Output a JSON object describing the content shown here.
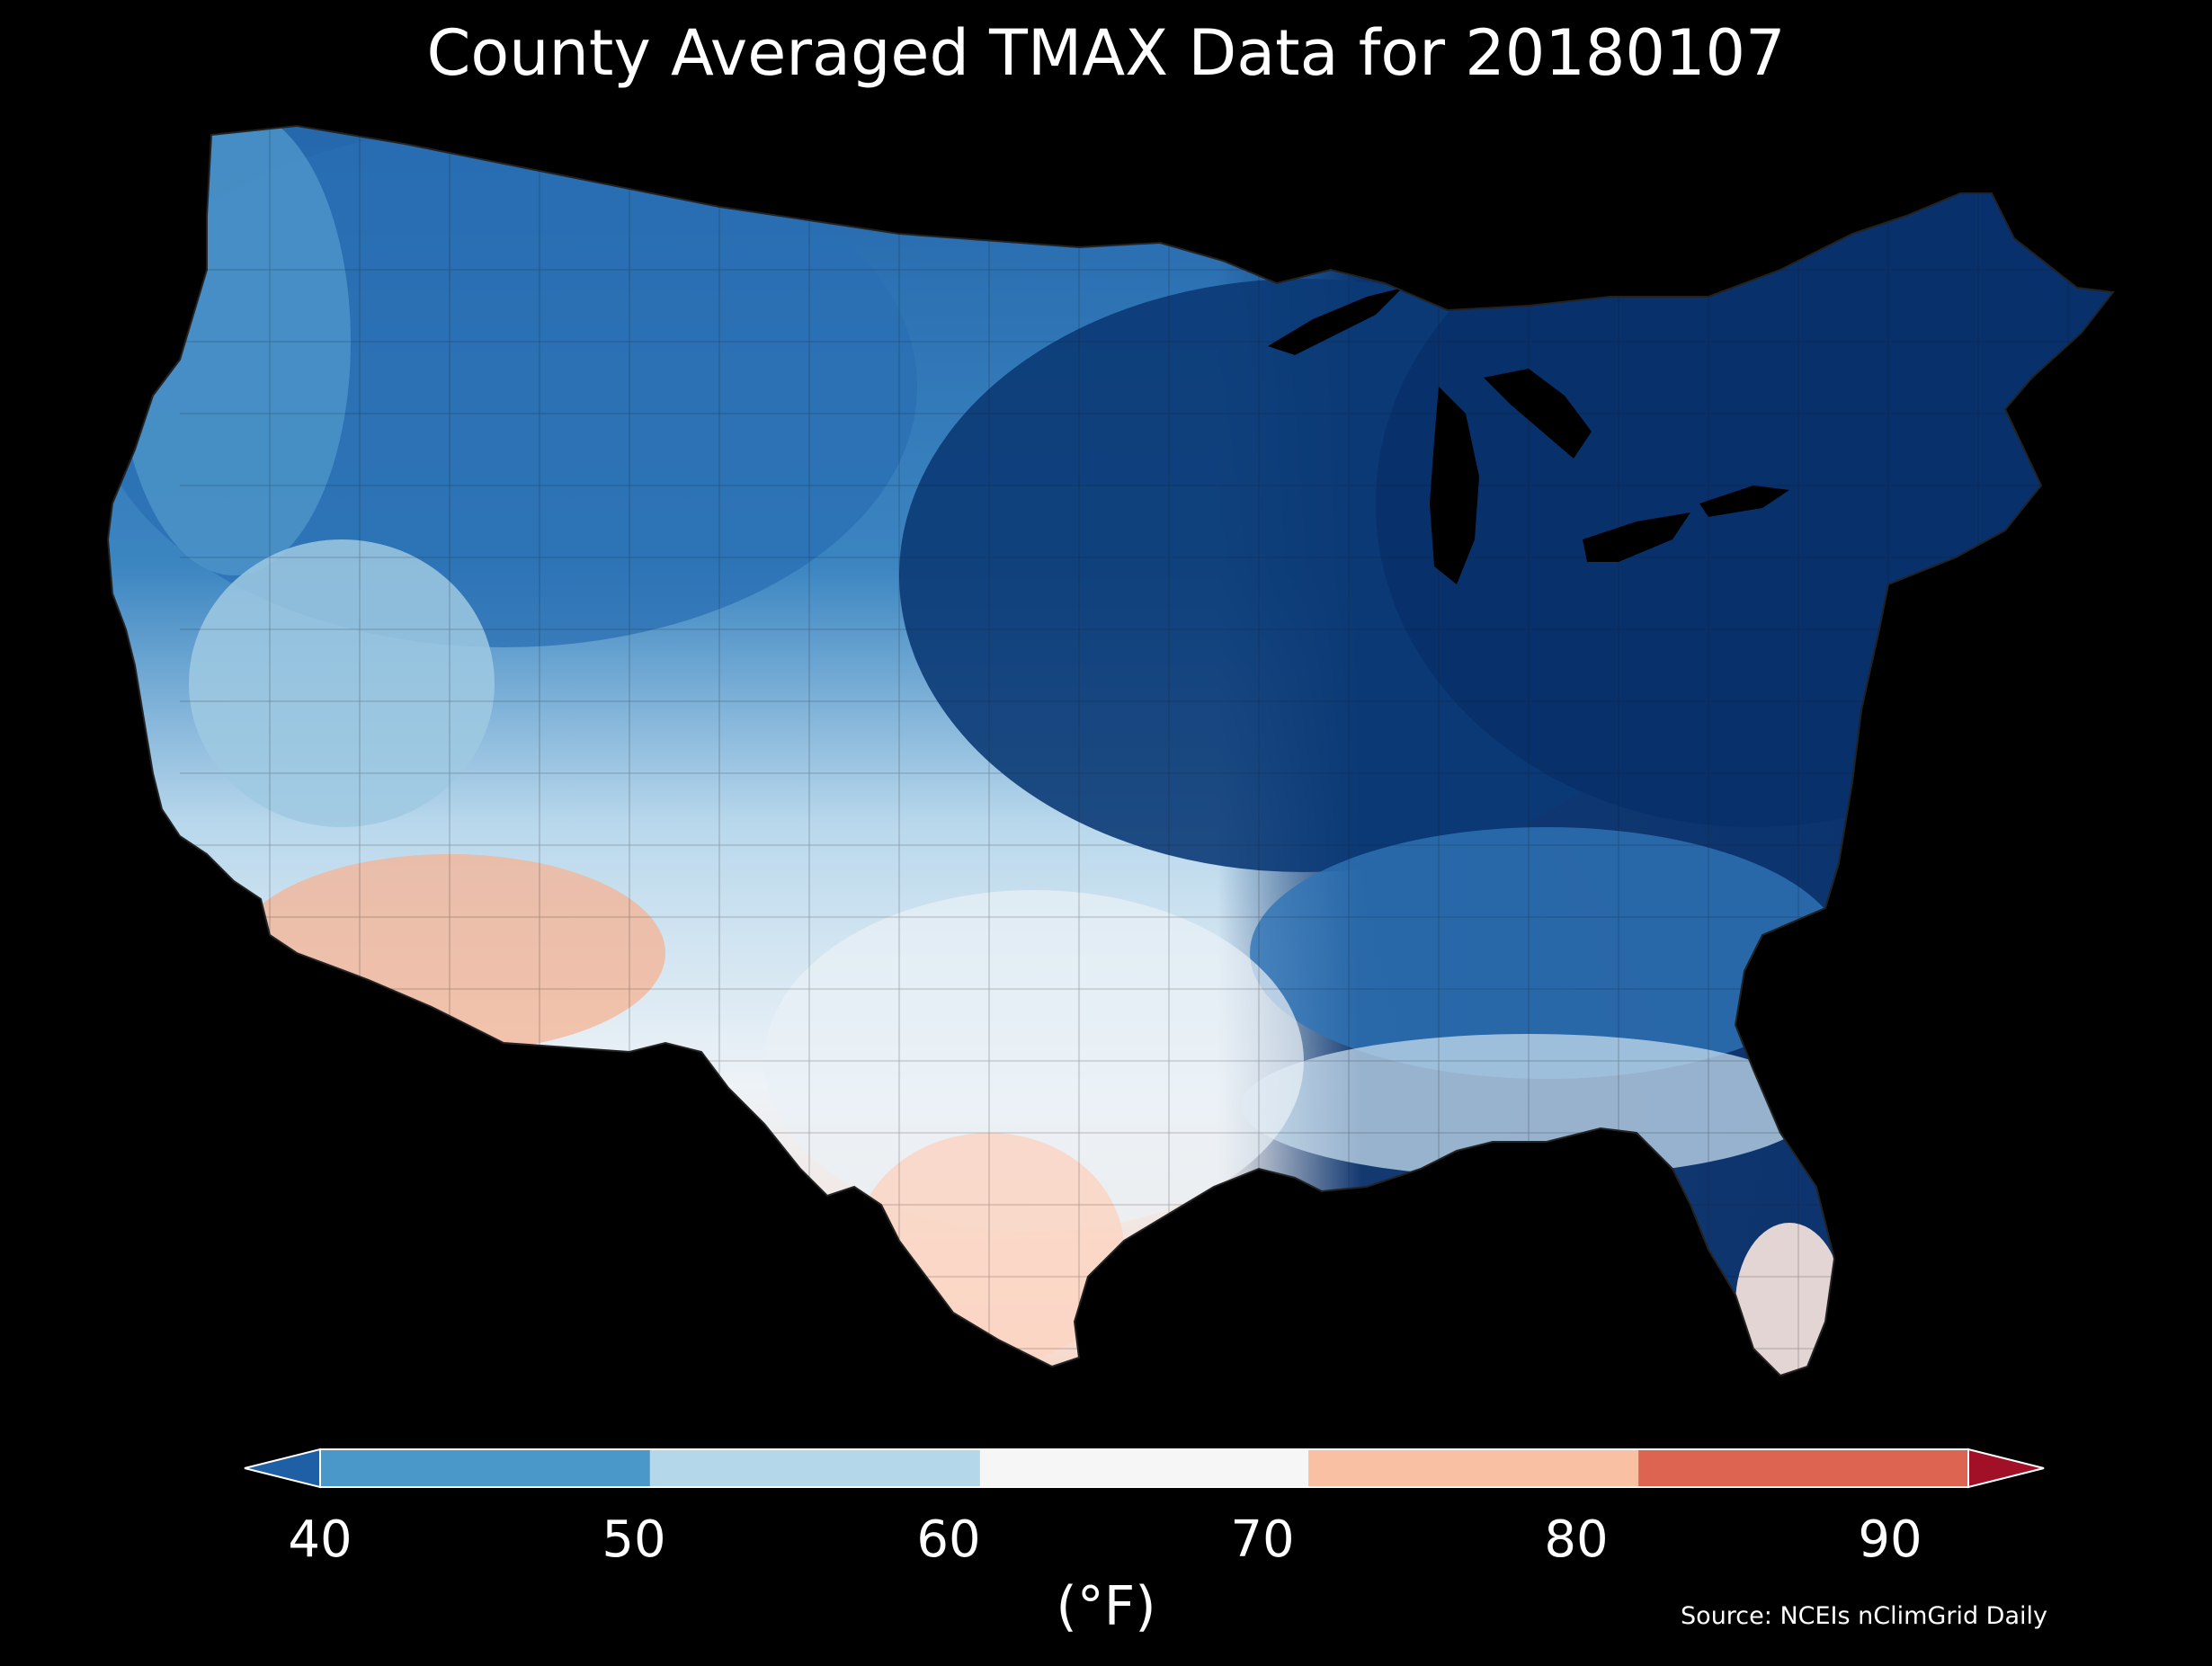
{
  "title": "County Averaged TMAX Data for 20180107",
  "source": "Source: NCEIs nClimGrid Daily",
  "colorbar": {
    "unit": "(°F)",
    "ticks": [
      "40",
      "50",
      "60",
      "70",
      "80",
      "90"
    ],
    "bins": [
      {
        "from": 40,
        "to": 50,
        "color": "#4a97c9"
      },
      {
        "from": 50,
        "to": 60,
        "color": "#b5d7ea"
      },
      {
        "from": 60,
        "to": 70,
        "color": "#f6f6f6"
      },
      {
        "from": 70,
        "to": 80,
        "color": "#f9c0a4"
      },
      {
        "from": 80,
        "to": 90,
        "color": "#dc6450"
      }
    ],
    "under_color": "#1f5fa6",
    "over_color": "#a11026"
  },
  "map_regions": [
    {
      "name": "northeast",
      "color": "#08306b"
    },
    {
      "name": "upper-midwest",
      "color": "#0b3a75"
    },
    {
      "name": "northwest-interior",
      "color": "#2a70b5"
    },
    {
      "name": "pacific-northwest-coast",
      "color": "#4b94c8"
    },
    {
      "name": "great-basin",
      "color": "#8fc0dd"
    },
    {
      "name": "southeast",
      "color": "#2f74b6"
    },
    {
      "name": "gulf-coast",
      "color": "#c6dcee"
    },
    {
      "name": "texas-interior",
      "color": "#eaf1f7"
    },
    {
      "name": "desert-southwest",
      "color": "#f6b393"
    },
    {
      "name": "south-texas",
      "color": "#fbd5c3"
    },
    {
      "name": "south-florida",
      "color": "#fbe7de"
    }
  ]
}
